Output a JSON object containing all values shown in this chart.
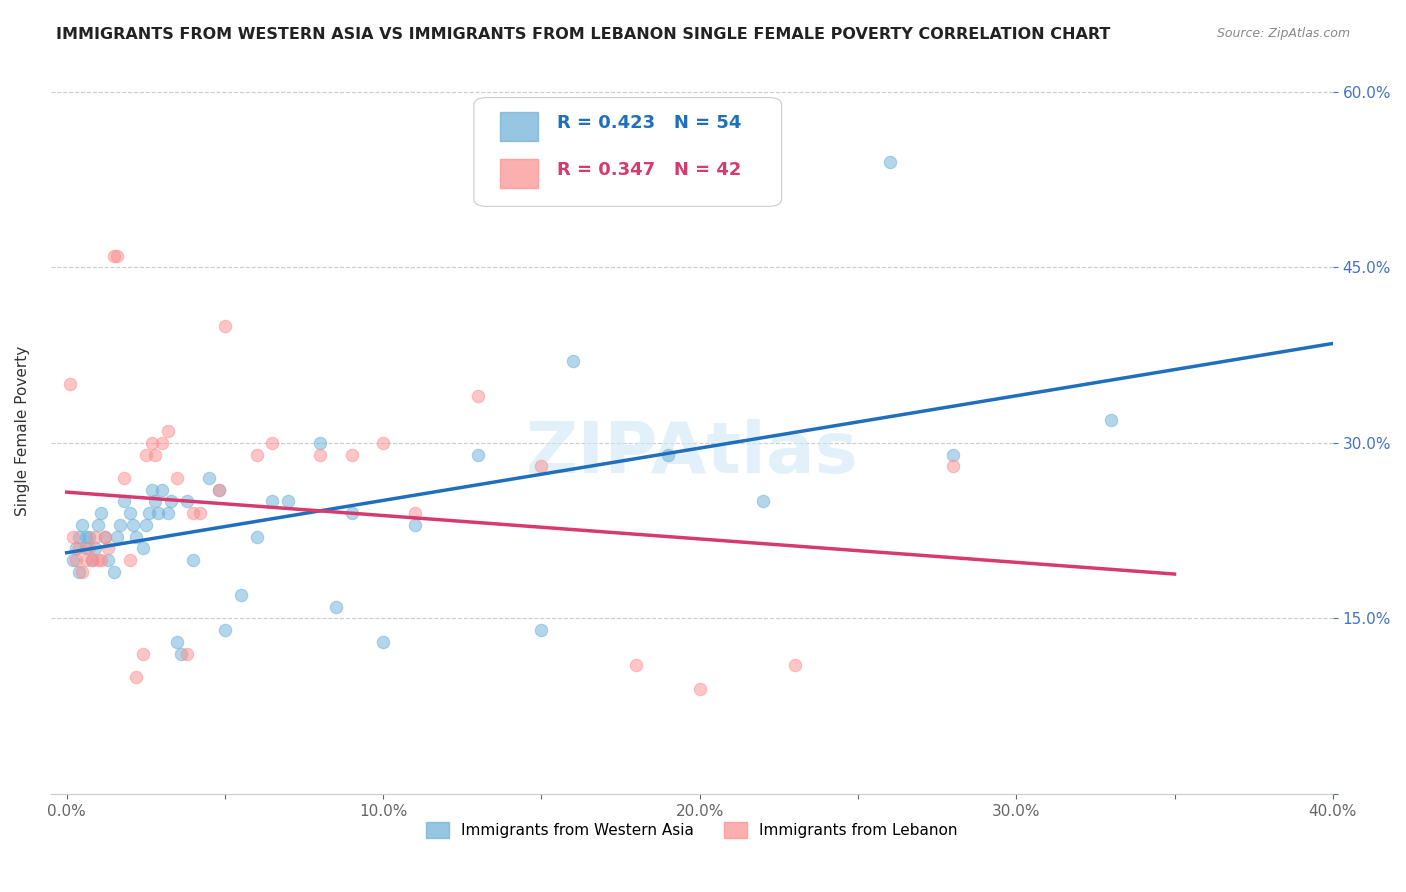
{
  "title": "IMMIGRANTS FROM WESTERN ASIA VS IMMIGRANTS FROM LEBANON SINGLE FEMALE POVERTY CORRELATION CHART",
  "source": "Source: ZipAtlas.com",
  "xlabel_bottom": "",
  "ylabel": "Single Female Poverty",
  "xlim": [
    0.0,
    0.4
  ],
  "ylim": [
    0.0,
    0.62
  ],
  "xticks": [
    0.0,
    0.05,
    0.1,
    0.15,
    0.2,
    0.25,
    0.3,
    0.35,
    0.4
  ],
  "xticklabels": [
    "0.0%",
    "",
    "10.0%",
    "",
    "20.0%",
    "",
    "30.0%",
    "",
    "40.0%"
  ],
  "yticks_right": [
    0.0,
    0.15,
    0.3,
    0.45,
    0.6
  ],
  "ytick_labels_right": [
    "",
    "15.0%",
    "30.0%",
    "45.0%",
    "60.0%"
  ],
  "grid_color": "#cccccc",
  "background_color": "#ffffff",
  "watermark": "ZIPAtlas",
  "watermark_color": "#d0e8f5",
  "legend_r1": "R = 0.423",
  "legend_n1": "N = 54",
  "legend_r2": "R = 0.347",
  "legend_n2": "N = 42",
  "blue_color": "#6baed6",
  "pink_color": "#fc8d8d",
  "blue_line_color": "#1f6fbd",
  "pink_line_color": "#d63b6e",
  "dot_alpha": 0.5,
  "dot_size": 80,
  "blue_x": [
    0.002,
    0.003,
    0.004,
    0.004,
    0.005,
    0.006,
    0.006,
    0.007,
    0.008,
    0.009,
    0.01,
    0.011,
    0.012,
    0.013,
    0.015,
    0.016,
    0.017,
    0.018,
    0.02,
    0.021,
    0.022,
    0.024,
    0.025,
    0.026,
    0.027,
    0.028,
    0.029,
    0.03,
    0.032,
    0.033,
    0.035,
    0.036,
    0.038,
    0.04,
    0.045,
    0.048,
    0.05,
    0.055,
    0.06,
    0.065,
    0.07,
    0.08,
    0.085,
    0.09,
    0.1,
    0.11,
    0.13,
    0.15,
    0.16,
    0.19,
    0.22,
    0.26,
    0.28,
    0.33
  ],
  "blue_y": [
    0.2,
    0.21,
    0.22,
    0.19,
    0.23,
    0.21,
    0.22,
    0.22,
    0.2,
    0.21,
    0.23,
    0.24,
    0.22,
    0.2,
    0.19,
    0.22,
    0.23,
    0.25,
    0.24,
    0.23,
    0.22,
    0.21,
    0.23,
    0.24,
    0.26,
    0.25,
    0.24,
    0.26,
    0.24,
    0.25,
    0.13,
    0.12,
    0.25,
    0.2,
    0.27,
    0.26,
    0.14,
    0.17,
    0.22,
    0.25,
    0.25,
    0.3,
    0.16,
    0.24,
    0.13,
    0.23,
    0.29,
    0.14,
    0.37,
    0.29,
    0.25,
    0.54,
    0.29,
    0.32
  ],
  "pink_x": [
    0.001,
    0.002,
    0.003,
    0.004,
    0.005,
    0.006,
    0.007,
    0.008,
    0.009,
    0.01,
    0.011,
    0.012,
    0.013,
    0.015,
    0.016,
    0.018,
    0.02,
    0.022,
    0.024,
    0.025,
    0.027,
    0.028,
    0.03,
    0.032,
    0.035,
    0.038,
    0.04,
    0.042,
    0.048,
    0.05,
    0.06,
    0.065,
    0.08,
    0.09,
    0.1,
    0.11,
    0.13,
    0.15,
    0.18,
    0.2,
    0.23,
    0.28
  ],
  "pink_y": [
    0.35,
    0.22,
    0.2,
    0.21,
    0.19,
    0.2,
    0.21,
    0.2,
    0.22,
    0.2,
    0.2,
    0.22,
    0.21,
    0.46,
    0.46,
    0.27,
    0.2,
    0.1,
    0.12,
    0.29,
    0.3,
    0.29,
    0.3,
    0.31,
    0.27,
    0.12,
    0.24,
    0.24,
    0.26,
    0.4,
    0.29,
    0.3,
    0.29,
    0.29,
    0.3,
    0.24,
    0.34,
    0.28,
    0.11,
    0.09,
    0.11,
    0.28
  ]
}
